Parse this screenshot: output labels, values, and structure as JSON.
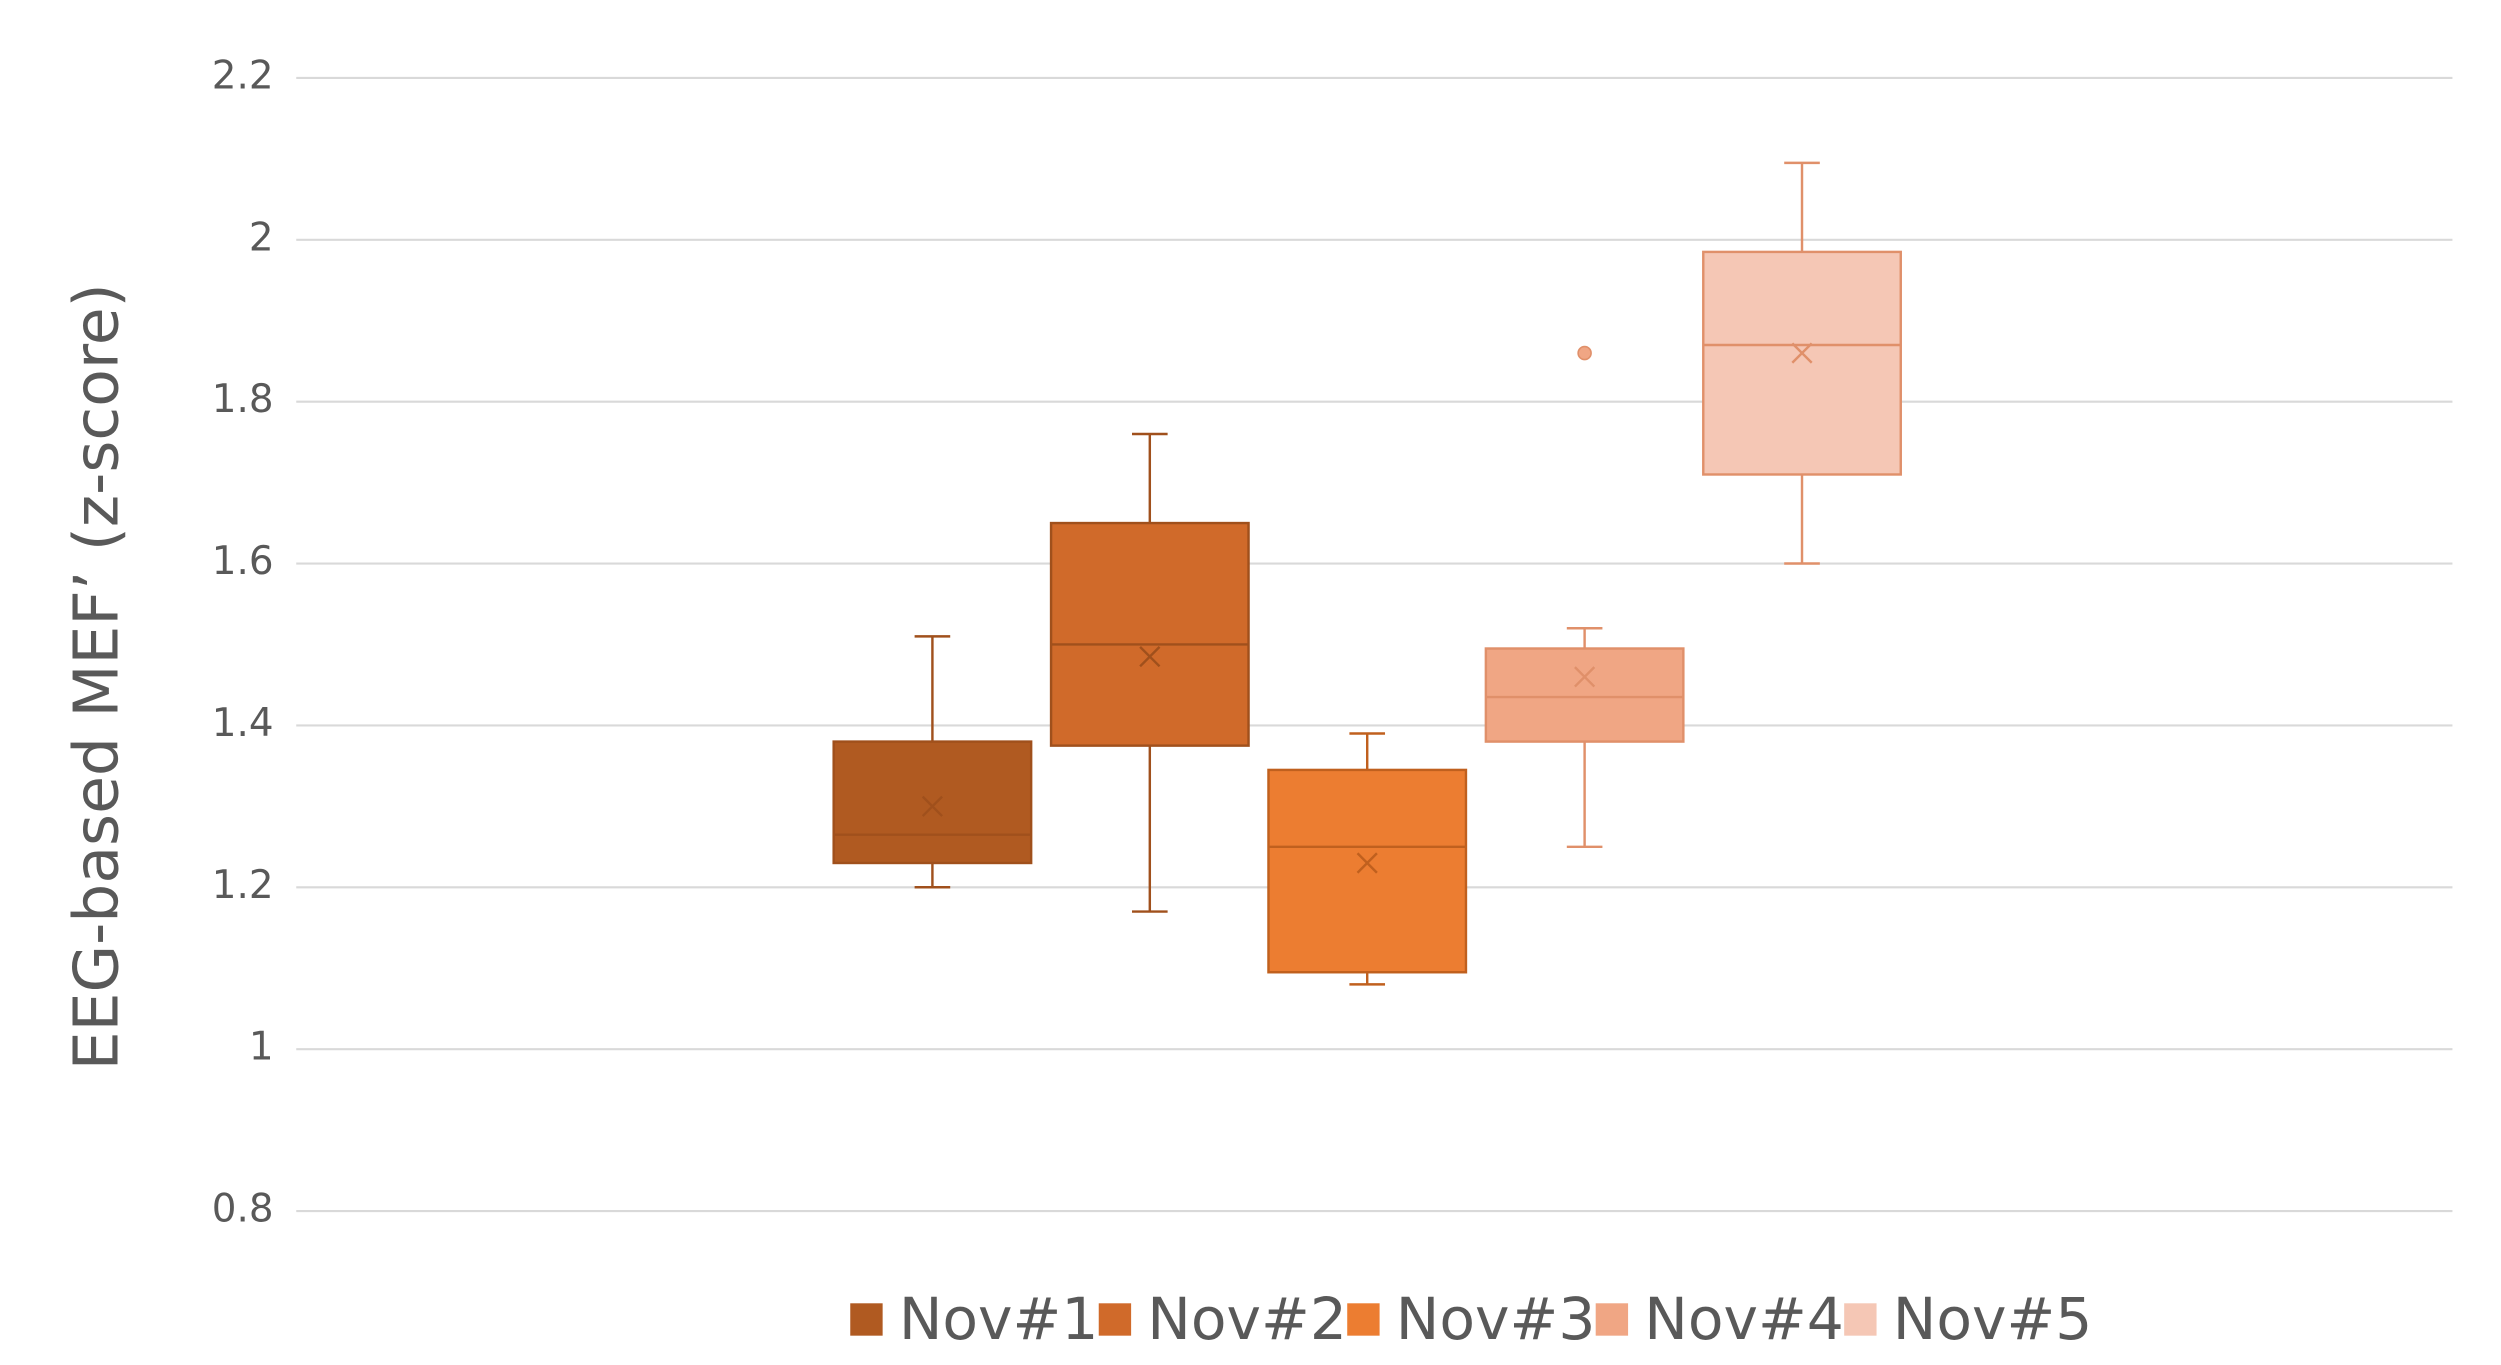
{
  "chart_data": {
    "type": "box",
    "y_label": "EEG-based MEF’ (z-score)",
    "ylim": [
      0.8,
      2.2
    ],
    "yticks": [
      0.8,
      1,
      1.2,
      1.4,
      1.6,
      1.8,
      2,
      2.2
    ],
    "grid": true,
    "legend": "bottom",
    "series": [
      {
        "name": "Nov#1",
        "color": "#B05A21",
        "min": 1.2,
        "q1": 1.23,
        "median": 1.265,
        "q3": 1.38,
        "max": 1.51,
        "mean": 1.3,
        "outliers": []
      },
      {
        "name": "Nov#2",
        "color": "#D06A2A",
        "min": 1.17,
        "q1": 1.375,
        "median": 1.5,
        "q3": 1.65,
        "max": 1.76,
        "mean": 1.485,
        "outliers": []
      },
      {
        "name": "Nov#3",
        "color": "#EC7D31",
        "min": 1.08,
        "q1": 1.095,
        "median": 1.25,
        "q3": 1.345,
        "max": 1.39,
        "mean": 1.23,
        "outliers": []
      },
      {
        "name": "Nov#4",
        "color": "#F0A684",
        "min": 1.25,
        "q1": 1.38,
        "median": 1.435,
        "q3": 1.495,
        "max": 1.52,
        "mean": 1.46,
        "outliers": [
          1.86
        ]
      },
      {
        "name": "Nov#5",
        "color": "#F5C7B5",
        "min": 1.6,
        "q1": 1.71,
        "median": 1.87,
        "q3": 1.985,
        "max": 2.095,
        "mean": 1.86,
        "outliers": []
      }
    ]
  }
}
